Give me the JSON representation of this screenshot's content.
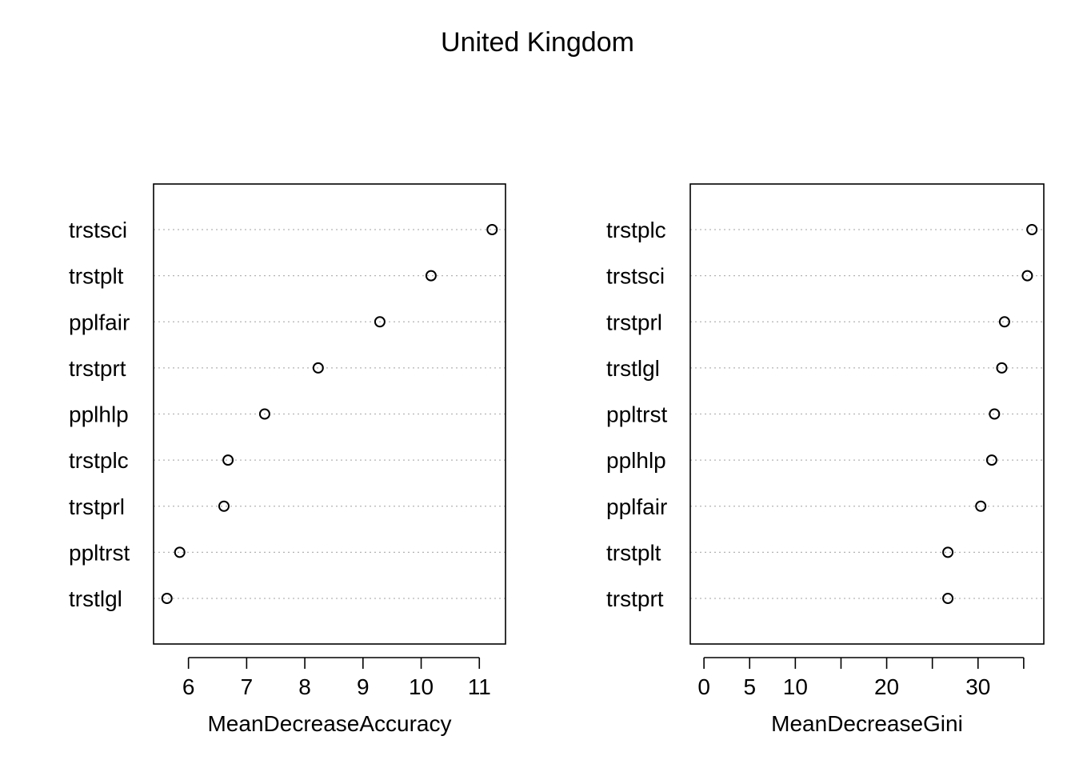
{
  "title": "United Kingdom",
  "chart_data": [
    {
      "type": "scatter",
      "style": "dotchart",
      "xlabel": "MeanDecreaseAccuracy",
      "ylabel": "",
      "xlim": [
        5.4,
        11.45
      ],
      "ticks": [
        6,
        7,
        8,
        9,
        10,
        11
      ],
      "tick_labels": [
        "6",
        "7",
        "8",
        "9",
        "10",
        "11"
      ],
      "grid": "dotted horizontal",
      "categories": [
        "trstsci",
        "trstplt",
        "pplfair",
        "trstprt",
        "pplhlp",
        "trstplc",
        "trstprl",
        "ppltrst",
        "trstlgl"
      ],
      "values": [
        11.22,
        10.17,
        9.29,
        8.23,
        7.31,
        6.68,
        6.61,
        5.85,
        5.63
      ]
    },
    {
      "type": "scatter",
      "style": "dotchart",
      "xlabel": "MeanDecreaseGini",
      "ylabel": "",
      "xlim": [
        -1.5,
        37.2
      ],
      "ticks": [
        0,
        5,
        10,
        15,
        20,
        25,
        30,
        35
      ],
      "tick_labels": [
        "0",
        "5",
        "10",
        "",
        "20",
        "",
        "30",
        ""
      ],
      "grid": "dotted horizontal",
      "categories": [
        "trstplc",
        "trstsci",
        "trstprl",
        "trstlgl",
        "ppltrst",
        "pplhlp",
        "pplfair",
        "trstplt",
        "trstprt"
      ],
      "values": [
        35.9,
        35.4,
        32.9,
        32.6,
        31.8,
        31.5,
        30.3,
        26.7,
        26.7
      ]
    }
  ]
}
